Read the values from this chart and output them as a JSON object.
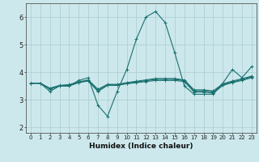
{
  "title": "",
  "xlabel": "Humidex (Indice chaleur)",
  "xlim": [
    -0.5,
    23.5
  ],
  "ylim": [
    1.8,
    6.5
  ],
  "yticks": [
    2,
    3,
    4,
    5,
    6
  ],
  "xticks": [
    0,
    1,
    2,
    3,
    4,
    5,
    6,
    7,
    8,
    9,
    10,
    11,
    12,
    13,
    14,
    15,
    16,
    17,
    18,
    19,
    20,
    21,
    22,
    23
  ],
  "background_color": "#cce8ec",
  "grid_color": "#aaccd0",
  "line_color": "#1a7070",
  "lines": [
    [
      3.6,
      3.6,
      3.3,
      3.5,
      3.5,
      3.7,
      3.8,
      2.8,
      2.4,
      3.3,
      4.1,
      5.2,
      6.0,
      6.2,
      5.8,
      4.7,
      3.5,
      3.2,
      3.2,
      3.2,
      3.6,
      4.1,
      3.8,
      4.2
    ],
    [
      3.6,
      3.6,
      3.4,
      3.5,
      3.5,
      3.62,
      3.68,
      3.3,
      3.52,
      3.52,
      3.58,
      3.62,
      3.66,
      3.7,
      3.7,
      3.7,
      3.66,
      3.28,
      3.28,
      3.24,
      3.52,
      3.62,
      3.7,
      3.8
    ],
    [
      3.6,
      3.6,
      3.42,
      3.52,
      3.55,
      3.65,
      3.72,
      3.38,
      3.56,
      3.56,
      3.62,
      3.67,
      3.72,
      3.77,
      3.77,
      3.77,
      3.72,
      3.36,
      3.36,
      3.32,
      3.58,
      3.68,
      3.76,
      3.86
    ],
    [
      3.6,
      3.6,
      3.38,
      3.51,
      3.53,
      3.63,
      3.7,
      3.34,
      3.54,
      3.54,
      3.6,
      3.65,
      3.69,
      3.74,
      3.74,
      3.74,
      3.69,
      3.32,
      3.32,
      3.28,
      3.55,
      3.65,
      3.73,
      3.83
    ]
  ],
  "marker": "+",
  "markersize": 3,
  "linewidth": 0.8,
  "tick_fontsize": 5,
  "xlabel_fontsize": 6.5
}
